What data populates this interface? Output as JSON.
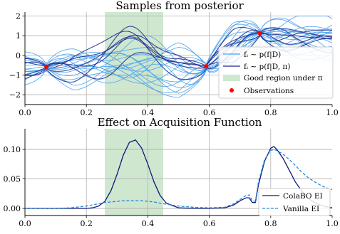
{
  "colors": {
    "light_sample": "#4aa3ee",
    "dark_sample": "#1b2a8c",
    "region": "#cfe7cf",
    "observation": "#ff0000",
    "colabo": "#0a1a78",
    "vanilla": "#2a8ad8"
  },
  "chart_data": [
    {
      "type": "line",
      "title": "Samples from posterior",
      "xlim": [
        0.0,
        1.0
      ],
      "ylim": [
        -2.5,
        2.2
      ],
      "xticks": [
        "0.0",
        "0.2",
        "0.4",
        "0.6",
        "0.8",
        "1.0"
      ],
      "yticks": [
        "−2",
        "−1",
        "0",
        "1",
        "2"
      ],
      "grid": true,
      "shaded_region": {
        "x": [
          0.26,
          0.45
        ],
        "label": "Good region under π"
      },
      "observations": {
        "label": "Observations",
        "x": [
          0.07,
          0.59,
          0.765
        ],
        "y": [
          -0.58,
          -0.55,
          1.12
        ]
      },
      "series": [
        {
          "name": "f_i ∼ p(f|D)",
          "label_tex": "fᵢ ∼ p(f|D)",
          "samples": 16
        },
        {
          "name": "f_i ∼ p(f|D, π)",
          "label_tex": "fᵢ ∼ p(f|D, π)",
          "samples": 6
        }
      ],
      "legend": "lower-right"
    },
    {
      "type": "line",
      "title": "Effect on Acquisition Function",
      "xlim": [
        0.0,
        1.0
      ],
      "ylim": [
        -0.012,
        0.135
      ],
      "xticks": [
        "0.0",
        "0.2",
        "0.4",
        "0.6",
        "0.8",
        "1.0"
      ],
      "yticks": [
        "0.00",
        "0.05",
        "0.10"
      ],
      "grid": true,
      "shaded_region": {
        "x": [
          0.26,
          0.45
        ]
      },
      "x": [
        0.0,
        0.05,
        0.1,
        0.15,
        0.2,
        0.22,
        0.24,
        0.26,
        0.28,
        0.3,
        0.32,
        0.34,
        0.36,
        0.38,
        0.4,
        0.42,
        0.44,
        0.46,
        0.5,
        0.55,
        0.6,
        0.65,
        0.68,
        0.7,
        0.72,
        0.73,
        0.74,
        0.75,
        0.76,
        0.78,
        0.8,
        0.81,
        0.82,
        0.84,
        0.86,
        0.88,
        0.9,
        0.92,
        0.94,
        0.96,
        0.98,
        1.0
      ],
      "series": [
        {
          "name": "ColaBO EI",
          "style": "solid",
          "values": [
            0.0,
            0.0,
            0.0,
            0.0,
            0.0,
            0.001,
            0.004,
            0.012,
            0.03,
            0.058,
            0.09,
            0.112,
            0.116,
            0.102,
            0.075,
            0.045,
            0.022,
            0.009,
            0.001,
            0.0,
            0.0,
            0.001,
            0.006,
            0.013,
            0.018,
            0.018,
            0.01,
            0.01,
            0.04,
            0.08,
            0.102,
            0.105,
            0.1,
            0.085,
            0.065,
            0.045,
            0.03,
            0.018,
            0.011,
            0.006,
            0.003,
            0.001
          ]
        },
        {
          "name": "Vanilla EI",
          "style": "dashed",
          "values": [
            0.0,
            0.0,
            0.0,
            0.001,
            0.004,
            0.006,
            0.008,
            0.01,
            0.011,
            0.012,
            0.013,
            0.013,
            0.013,
            0.013,
            0.012,
            0.011,
            0.009,
            0.007,
            0.004,
            0.002,
            0.001,
            0.002,
            0.008,
            0.015,
            0.022,
            0.023,
            0.013,
            0.012,
            0.045,
            0.083,
            0.098,
            0.1,
            0.098,
            0.092,
            0.083,
            0.073,
            0.062,
            0.053,
            0.046,
            0.04,
            0.035,
            0.032
          ]
        }
      ],
      "legend": "lower-right"
    }
  ]
}
